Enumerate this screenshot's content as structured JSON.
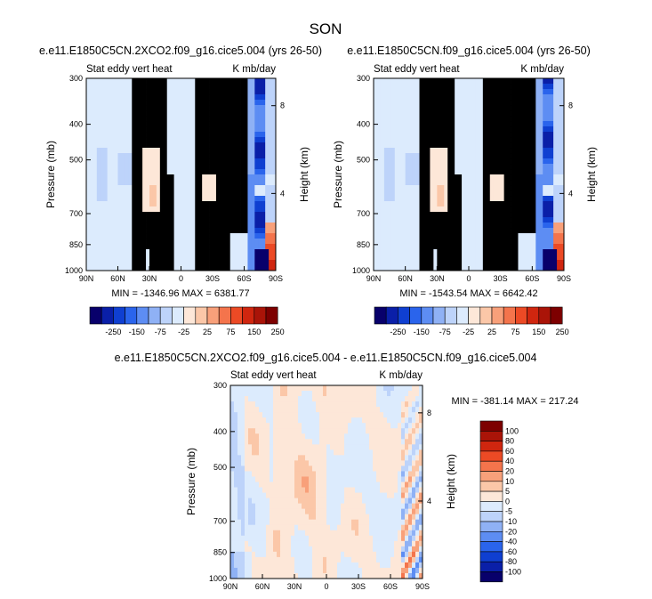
{
  "figure": {
    "title": "SON"
  },
  "colors": {
    "neg": [
      "#08006b",
      "#0a1fa8",
      "#0f3fd1",
      "#2a64ec",
      "#5d8df3",
      "#8fb1f5",
      "#bdd3fa",
      "#dcebfd"
    ],
    "pos": [
      "#fde7d8",
      "#fbc7a8",
      "#f8a07a",
      "#f4744c",
      "#ec4a25",
      "#d0260f",
      "#aa1408",
      "#7d0000"
    ]
  },
  "chart_data": [
    {
      "id": "left",
      "type": "heatmap",
      "title": "e.e11.E1850C5CN.2XCO2.f09_g16.cice5.004 (yrs 26-50)",
      "subtitle_left": "Stat eddy vert heat",
      "subtitle_right": "K mb/day",
      "ylabel": "Pressure (mb)",
      "ylabel_right": "Height (km)",
      "x_ticks": [
        "90N",
        "60N",
        "30N",
        "0",
        "30S",
        "60S",
        "90S"
      ],
      "x_values": [
        90,
        60,
        30,
        0,
        -30,
        -60,
        -90
      ],
      "y_ticks": [
        "300",
        "400",
        "500",
        "700",
        "850",
        "1000"
      ],
      "y_values": [
        300,
        400,
        500,
        700,
        850,
        1000
      ],
      "y_right_ticks": [
        "8",
        "4"
      ],
      "ylim": [
        300,
        1000
      ],
      "xlim": [
        90,
        -90
      ],
      "min_max": "MIN = -1346.96   MAX = 6381.77",
      "colorbar_labels": [
        "-250",
        "-150",
        "-75",
        "-25",
        "25",
        "75",
        "150",
        "250"
      ]
    },
    {
      "id": "right",
      "type": "heatmap",
      "title": "e.e11.E1850C5CN.f09_g16.cice5.004 (yrs 26-50)",
      "subtitle_left": "Stat eddy vert heat",
      "subtitle_right": "K mb/day",
      "ylabel": "Pressure (mb)",
      "ylabel_right": "Height (km)",
      "x_ticks": [
        "90N",
        "60N",
        "30N",
        "0",
        "30S",
        "60S",
        "90S"
      ],
      "x_values": [
        90,
        60,
        30,
        0,
        -30,
        -60,
        -90
      ],
      "y_ticks": [
        "300",
        "400",
        "500",
        "700",
        "850",
        "1000"
      ],
      "y_values": [
        300,
        400,
        500,
        700,
        850,
        1000
      ],
      "y_right_ticks": [
        "8",
        "4"
      ],
      "ylim": [
        300,
        1000
      ],
      "xlim": [
        90,
        -90
      ],
      "min_max": "MIN = -1543.54   MAX = 6642.42",
      "colorbar_labels": [
        "-250",
        "-150",
        "-75",
        "-25",
        "25",
        "75",
        "150",
        "250"
      ]
    },
    {
      "id": "diff",
      "type": "heatmap",
      "title": "e.e11.E1850C5CN.2XCO2.f09_g16.cice5.004 - e.e11.E1850C5CN.f09_g16.cice5.004",
      "subtitle_left": "Stat eddy vert heat",
      "subtitle_right": "K mb/day",
      "ylabel": "Pressure (mb)",
      "ylabel_right": "Height (km)",
      "x_ticks": [
        "90N",
        "60N",
        "30N",
        "0",
        "30S",
        "60S",
        "90S"
      ],
      "x_values": [
        90,
        60,
        30,
        0,
        -30,
        -60,
        -90
      ],
      "y_ticks": [
        "300",
        "400",
        "500",
        "700",
        "850",
        "1000"
      ],
      "y_values": [
        300,
        400,
        500,
        700,
        850,
        1000
      ],
      "y_right_ticks": [
        "8",
        "4"
      ],
      "ylim": [
        300,
        1000
      ],
      "xlim": [
        90,
        -90
      ],
      "min_max": "MIN = -381.14   MAX = 217.24",
      "colorbar_labels": [
        "100",
        "80",
        "60",
        "40",
        "20",
        "10",
        "5",
        "0",
        "-5",
        "-10",
        "-20",
        "-40",
        "-60",
        "-80",
        "-100"
      ]
    }
  ]
}
